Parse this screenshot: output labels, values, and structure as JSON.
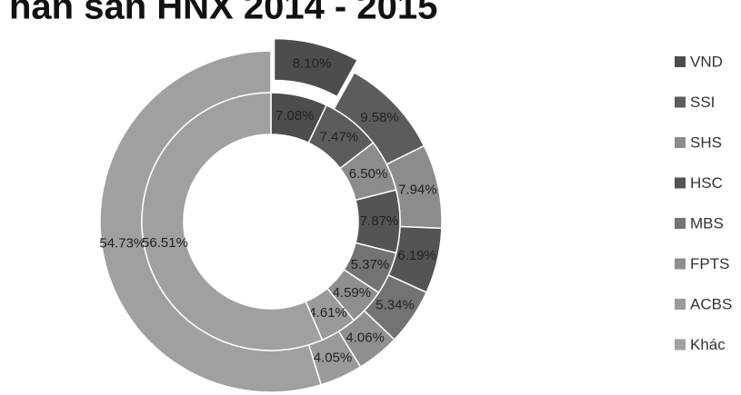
{
  "chart_data": {
    "type": "doughnut",
    "title": "hần sản HNX 2014 - 2015",
    "categories": [
      "VND",
      "SSI",
      "SHS",
      "HSC",
      "MBS",
      "FPTS",
      "ACBS",
      "Khác"
    ],
    "colors": [
      "#4d4d4d",
      "#5c5c5c",
      "#8c8c8c",
      "#545454",
      "#737373",
      "#8f8f8f",
      "#9a9a9a",
      "#a0a0a0"
    ],
    "rings": [
      {
        "values": [
          8.1,
          9.58,
          7.94,
          6.19,
          5.34,
          4.06,
          4.05,
          54.73
        ],
        "value_labels": [
          "8.10%",
          "9.58%",
          "7.94%",
          "6.19%",
          "5.34%",
          "4.06%",
          "4.05%",
          "54.73%"
        ]
      },
      {
        "values": [
          7.08,
          7.47,
          6.5,
          7.87,
          5.37,
          4.59,
          4.61,
          56.51
        ],
        "value_labels": [
          "7.08%",
          "7.47%",
          "6.50%",
          "7.87%",
          "5.37%",
          "4.59%",
          "4.61%",
          "56.51%"
        ]
      }
    ]
  }
}
